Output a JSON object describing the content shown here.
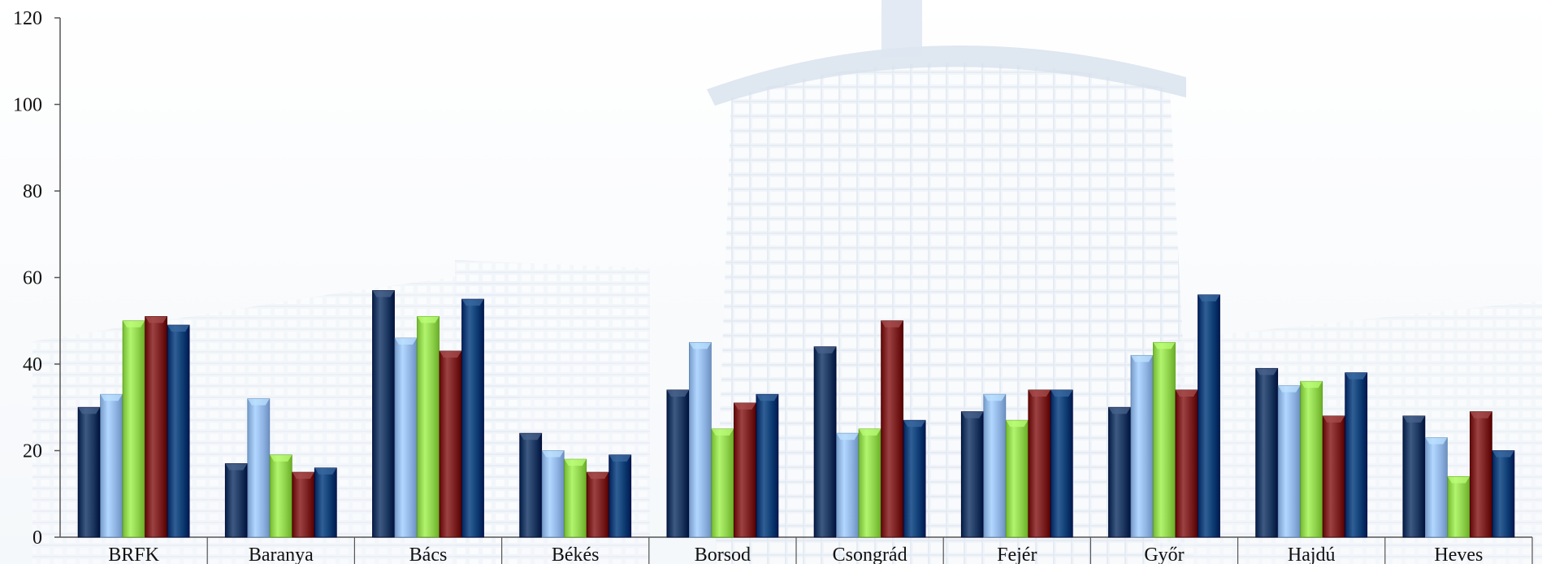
{
  "chart_data": {
    "type": "bar",
    "title": "",
    "xlabel": "",
    "ylabel": "",
    "ylim": [
      0,
      120
    ],
    "yticks": [
      0,
      20,
      40,
      60,
      80,
      100,
      120
    ],
    "grid": false,
    "legend": "none",
    "categories": [
      "BRFK",
      "Baranya",
      "Bács",
      "Békés",
      "Borsod",
      "Csongrád",
      "Fejér",
      "Győr",
      "Hajdú",
      "Heves"
    ],
    "series": [
      {
        "color": "#1b365f",
        "values": [
          30,
          17,
          57,
          24,
          34,
          44,
          29,
          30,
          39,
          28
        ]
      },
      {
        "color": "#8fb4e3",
        "values": [
          33,
          32,
          46,
          20,
          45,
          24,
          33,
          42,
          35,
          23
        ]
      },
      {
        "color": "#8ed14a",
        "values": [
          50,
          19,
          51,
          18,
          25,
          25,
          27,
          45,
          36,
          14
        ]
      },
      {
        "color": "#7a1f1f",
        "values": [
          51,
          15,
          43,
          15,
          31,
          50,
          34,
          34,
          28,
          29
        ]
      },
      {
        "color": "#0d3c73",
        "values": [
          49,
          16,
          55,
          19,
          33,
          27,
          34,
          56,
          38,
          20
        ]
      }
    ],
    "background_image": "building-photo-faded"
  }
}
